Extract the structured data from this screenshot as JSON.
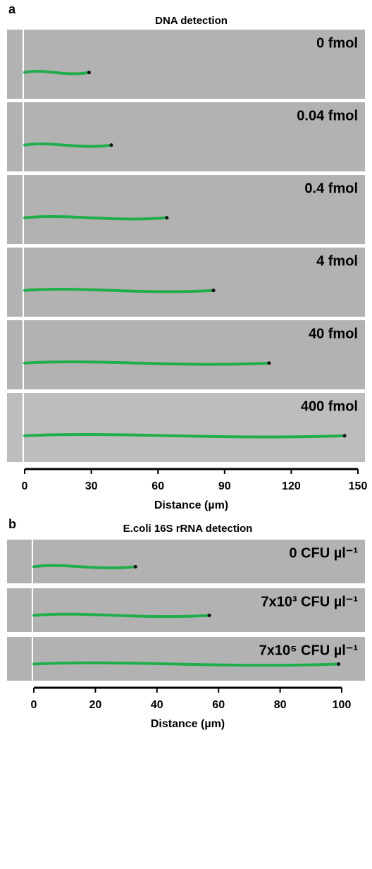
{
  "chart_data": [
    {
      "type": "track",
      "panel": "a",
      "title": "DNA detection",
      "x_label": "Distance (µm)",
      "categories": [
        "0 fmol",
        "0.04 fmol",
        "0.4 fmol",
        "4 fmol",
        "40 fmol",
        "400 fmol"
      ],
      "values": [
        29,
        39,
        64,
        85,
        110,
        144
      ],
      "color": "#1fae4b",
      "xlim": [
        0,
        150
      ],
      "xticks": [
        0,
        30,
        60,
        90,
        120,
        150
      ]
    },
    {
      "type": "track",
      "panel": "b",
      "title": "E.coli 16S rRNA detection",
      "x_label": "Distance (µm)",
      "categories": [
        "0 CFU µl⁻¹",
        "7x10³ CFU µl⁻¹",
        "7x10⁵ CFU µl⁻¹"
      ],
      "values": [
        33,
        57,
        99
      ],
      "color": "#1fae4b",
      "xlim": [
        0,
        100
      ],
      "xticks": [
        0,
        20,
        40,
        60,
        80,
        100
      ]
    }
  ]
}
